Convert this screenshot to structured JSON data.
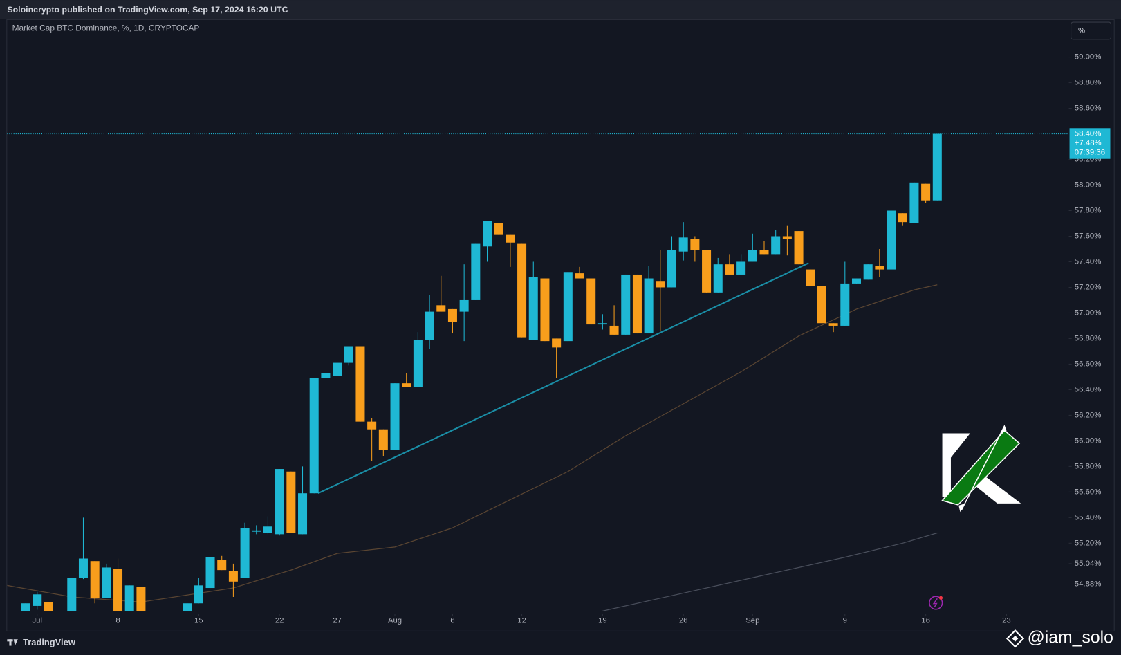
{
  "header": "Soloincrypto published on TradingView.com, Sep 17, 2024 16:20 UTC",
  "scale_button": "%",
  "footer": {
    "brand": "TradingView",
    "watermark": "@iam_solo"
  },
  "chart_data": {
    "type": "candlestick",
    "title": "Market Cap BTC Dominance, %, 1D, CRYPTOCAP",
    "up_color": "#1fb8d4",
    "down_color": "#f89e1c",
    "x": [
      -1,
      0,
      1,
      2,
      3,
      4,
      5,
      6,
      7,
      8,
      9,
      10,
      11,
      12,
      13,
      14,
      15,
      16,
      17,
      18,
      19,
      20,
      21,
      22,
      23,
      24,
      25,
      26,
      27,
      28,
      29,
      30,
      31,
      32,
      33,
      34,
      35,
      36,
      37,
      38,
      39,
      40,
      41,
      42,
      43,
      44,
      45,
      46,
      47,
      48,
      49,
      50,
      51,
      52,
      53,
      54,
      55,
      56,
      57,
      58,
      59,
      60,
      61,
      62,
      63,
      64,
      65,
      66,
      67,
      68,
      69,
      70,
      71,
      72,
      73,
      74,
      75,
      76,
      77,
      78
    ],
    "open": [
      54.67,
      54.71,
      54.74,
      null,
      54.67,
      54.93,
      55.06,
      54.77,
      55.0,
      54.67,
      54.86,
      null,
      null,
      null,
      54.67,
      54.73,
      54.85,
      55.07,
      54.98,
      54.93,
      55.29,
      55.28,
      55.27,
      55.76,
      55.27,
      55.59,
      56.49,
      56.51,
      56.61,
      56.74,
      56.15,
      56.09,
      55.93,
      56.45,
      56.42,
      56.79,
      57.06,
      57.03,
      57.01,
      57.1,
      57.52,
      57.7,
      57.61,
      57.54,
      56.79,
      57.27,
      56.8,
      56.78,
      57.31,
      57.27,
      56.91,
      56.9,
      56.83,
      57.3,
      56.84,
      57.25,
      57.2,
      57.48,
      57.58,
      57.49,
      57.16,
      57.38,
      57.3,
      57.4,
      57.49,
      57.46,
      57.6,
      57.64,
      57.34,
      57.21,
      56.92,
      56.9,
      57.23,
      57.26,
      57.37,
      57.34,
      57.78,
      57.7,
      58.01,
      57.88
    ],
    "high": [
      54.73,
      54.82,
      54.74,
      null,
      54.93,
      55.4,
      55.06,
      55.04,
      55.08,
      54.87,
      54.86,
      null,
      null,
      null,
      54.73,
      54.93,
      55.09,
      55.1,
      55.04,
      55.36,
      55.34,
      55.41,
      55.78,
      55.76,
      55.8,
      56.49,
      56.53,
      56.61,
      56.74,
      56.74,
      56.18,
      56.09,
      56.45,
      56.53,
      56.85,
      57.14,
      57.29,
      57.03,
      57.38,
      57.54,
      57.72,
      57.7,
      57.61,
      57.54,
      57.4,
      57.27,
      56.8,
      57.32,
      57.36,
      57.27,
      56.99,
      57.06,
      57.3,
      57.3,
      57.37,
      57.49,
      57.6,
      57.71,
      57.6,
      57.49,
      57.43,
      57.46,
      57.46,
      57.62,
      57.56,
      57.65,
      57.68,
      57.64,
      57.34,
      57.21,
      56.92,
      57.4,
      57.27,
      57.38,
      57.5,
      57.8,
      57.78,
      58.02,
      58.01,
      58.4
    ],
    "low": [
      54.67,
      54.68,
      54.67,
      null,
      54.67,
      54.92,
      54.73,
      54.77,
      54.67,
      54.67,
      54.67,
      null,
      null,
      null,
      54.67,
      54.73,
      54.85,
      54.99,
      54.78,
      54.93,
      55.27,
      55.27,
      55.26,
      55.28,
      55.27,
      55.59,
      56.49,
      56.51,
      56.59,
      56.15,
      55.84,
      55.88,
      55.93,
      56.42,
      56.42,
      56.72,
      57.01,
      56.84,
      56.78,
      57.1,
      57.4,
      57.61,
      57.36,
      56.81,
      56.79,
      56.78,
      56.49,
      56.78,
      57.27,
      56.91,
      56.87,
      56.83,
      56.83,
      56.84,
      56.84,
      56.86,
      57.2,
      57.41,
      57.4,
      57.16,
      57.16,
      57.3,
      57.3,
      57.4,
      57.46,
      57.46,
      57.45,
      57.38,
      57.21,
      56.92,
      56.85,
      56.9,
      57.23,
      57.26,
      57.28,
      57.34,
      57.68,
      57.7,
      57.86,
      57.88
    ],
    "close": [
      54.73,
      54.8,
      54.67,
      null,
      54.93,
      55.08,
      54.77,
      55.01,
      54.67,
      54.87,
      54.67,
      null,
      null,
      null,
      54.73,
      54.87,
      55.09,
      54.99,
      54.9,
      55.32,
      55.3,
      55.33,
      55.78,
      55.28,
      55.59,
      56.49,
      56.53,
      56.61,
      56.74,
      56.15,
      56.09,
      55.93,
      56.45,
      56.42,
      56.79,
      57.01,
      57.01,
      56.93,
      57.1,
      57.54,
      57.72,
      57.61,
      57.55,
      56.81,
      57.28,
      56.78,
      56.73,
      57.32,
      57.27,
      56.91,
      56.92,
      56.83,
      57.3,
      56.84,
      57.27,
      57.2,
      57.49,
      57.59,
      57.49,
      57.16,
      57.38,
      57.3,
      57.4,
      57.49,
      57.46,
      57.6,
      57.58,
      57.38,
      57.21,
      56.92,
      56.9,
      57.23,
      57.27,
      57.38,
      57.34,
      57.8,
      57.71,
      58.02,
      57.88,
      58.4
    ],
    "xlim": [
      -2.6,
      89.4
    ],
    "ylim": [
      54.65,
      59.29
    ],
    "xticks": [
      {
        "value": 0,
        "label": "Jul"
      },
      {
        "value": 7,
        "label": "8"
      },
      {
        "value": 14,
        "label": "15"
      },
      {
        "value": 21,
        "label": "22"
      },
      {
        "value": 26,
        "label": "27"
      },
      {
        "value": 31,
        "label": "Aug"
      },
      {
        "value": 36,
        "label": "6"
      },
      {
        "value": 42,
        "label": "12"
      },
      {
        "value": 49,
        "label": "19"
      },
      {
        "value": 56,
        "label": "26"
      },
      {
        "value": 62,
        "label": "Sep"
      },
      {
        "value": 70,
        "label": "9"
      },
      {
        "value": 77,
        "label": "16"
      },
      {
        "value": 84,
        "label": "23"
      }
    ],
    "yticks": [
      {
        "value": 59.0,
        "label": "59.00%"
      },
      {
        "value": 58.8,
        "label": "58.80%"
      },
      {
        "value": 58.6,
        "label": "58.60%"
      },
      {
        "value": 58.2,
        "label": "58.20%"
      },
      {
        "value": 58.0,
        "label": "58.00%"
      },
      {
        "value": 57.8,
        "label": "57.80%"
      },
      {
        "value": 57.6,
        "label": "57.60%"
      },
      {
        "value": 57.4,
        "label": "57.40%"
      },
      {
        "value": 57.2,
        "label": "57.20%"
      },
      {
        "value": 57.0,
        "label": "57.00%"
      },
      {
        "value": 56.8,
        "label": "56.80%"
      },
      {
        "value": 56.6,
        "label": "56.60%"
      },
      {
        "value": 56.4,
        "label": "56.40%"
      },
      {
        "value": 56.2,
        "label": "56.20%"
      },
      {
        "value": 56.0,
        "label": "56.00%"
      },
      {
        "value": 55.8,
        "label": "55.80%"
      },
      {
        "value": 55.6,
        "label": "55.60%"
      },
      {
        "value": 55.4,
        "label": "55.40%"
      },
      {
        "value": 55.2,
        "label": "55.20%"
      },
      {
        "value": 55.04,
        "label": "55.04%"
      },
      {
        "value": 54.88,
        "label": "54.88%"
      }
    ],
    "grid": false,
    "last_price": {
      "value": 58.4,
      "label": "58.40%",
      "change": "+7.48%",
      "countdown": "07:39:36",
      "color": "#1fb8d4"
    },
    "trendline": {
      "color": "#1a8ea6",
      "x": [
        24.35,
        66.85
      ],
      "values": [
        55.59,
        57.39
      ]
    },
    "moving_averages": [
      {
        "color": "#5a4532",
        "x": [
          -2.6,
          3,
          9,
          17,
          22,
          26,
          31,
          36,
          41,
          46,
          51,
          56,
          61,
          66,
          71,
          76,
          78
        ],
        "values": [
          54.87,
          54.78,
          54.74,
          54.85,
          54.99,
          55.12,
          55.17,
          55.32,
          55.54,
          55.76,
          56.04,
          56.29,
          56.54,
          56.82,
          57.03,
          57.18,
          57.22
        ]
      },
      {
        "color": "#4a4f5c",
        "x": [
          49,
          56,
          63,
          70,
          75,
          78
        ],
        "values": [
          54.67,
          54.81,
          54.95,
          55.09,
          55.2,
          55.28
        ]
      }
    ]
  }
}
